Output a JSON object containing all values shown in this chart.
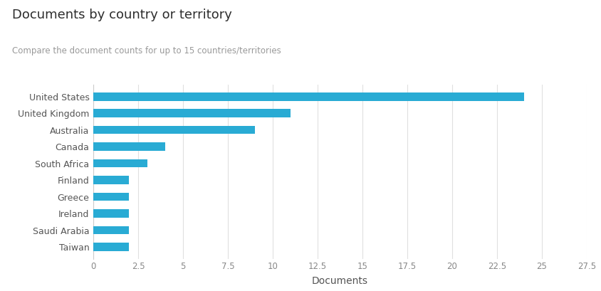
{
  "title": "Documents by country or territory",
  "subtitle": "Compare the document counts for up to 15 countries/territories",
  "xlabel": "Documents",
  "categories": [
    "Taiwan",
    "Saudi Arabia",
    "Ireland",
    "Greece",
    "Finland",
    "South Africa",
    "Canada",
    "Australia",
    "United Kingdom",
    "United States"
  ],
  "values": [
    2,
    2,
    2,
    2,
    2,
    3,
    4,
    9,
    11,
    24
  ],
  "bar_color": "#29ABD4",
  "bar_height": 0.5,
  "xlim": [
    0,
    27.5
  ],
  "xticks": [
    0,
    2.5,
    5,
    7.5,
    10,
    12.5,
    15,
    17.5,
    20,
    22.5,
    25,
    27.5
  ],
  "xtick_labels": [
    "0",
    "2.5",
    "5",
    "7.5",
    "10",
    "12.5",
    "15",
    "17.5",
    "20",
    "22.5",
    "25",
    "27.5"
  ],
  "background_color": "#ffffff",
  "title_fontsize": 13,
  "subtitle_fontsize": 8.5,
  "label_fontsize": 9,
  "tick_fontsize": 8.5,
  "xlabel_fontsize": 10,
  "title_color": "#2d2d2d",
  "subtitle_color": "#999999",
  "label_color": "#555555",
  "tick_color": "#888888",
  "grid_color": "#e0e0e0",
  "spine_color": "#cccccc"
}
